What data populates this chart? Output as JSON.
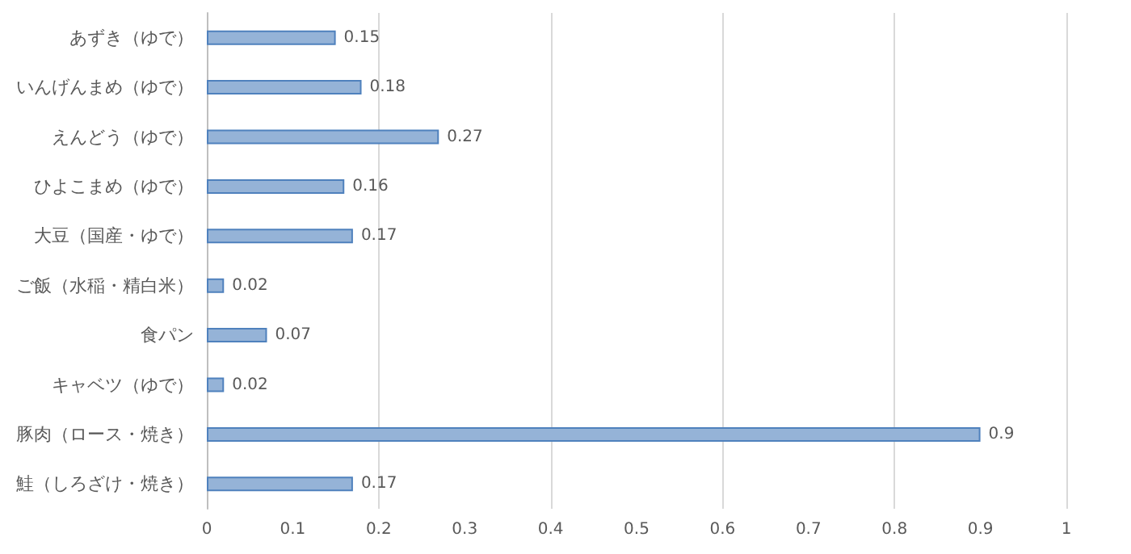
{
  "chart_data": {
    "type": "bar",
    "orientation": "horizontal",
    "categories": [
      "あずき（ゆで）",
      "いんげんまめ（ゆで）",
      "えんどう（ゆで）",
      "ひよこまめ（ゆで）",
      "大豆（国産・ゆで）",
      "ご飯（水稲・精白米）",
      "食パン",
      "キャベツ（ゆで）",
      "豚肉（ロース・焼き）",
      "鮭（しろざけ・焼き）"
    ],
    "values": [
      0.15,
      0.18,
      0.27,
      0.16,
      0.17,
      0.02,
      0.07,
      0.02,
      0.9,
      0.17
    ],
    "color": "#95b3d7",
    "xlim": [
      0,
      1
    ],
    "xticks": [
      0,
      0.1,
      0.2,
      0.3,
      0.4,
      0.5,
      0.6,
      0.7,
      0.8,
      0.9,
      1
    ],
    "grid": "x",
    "data_labels": true
  }
}
